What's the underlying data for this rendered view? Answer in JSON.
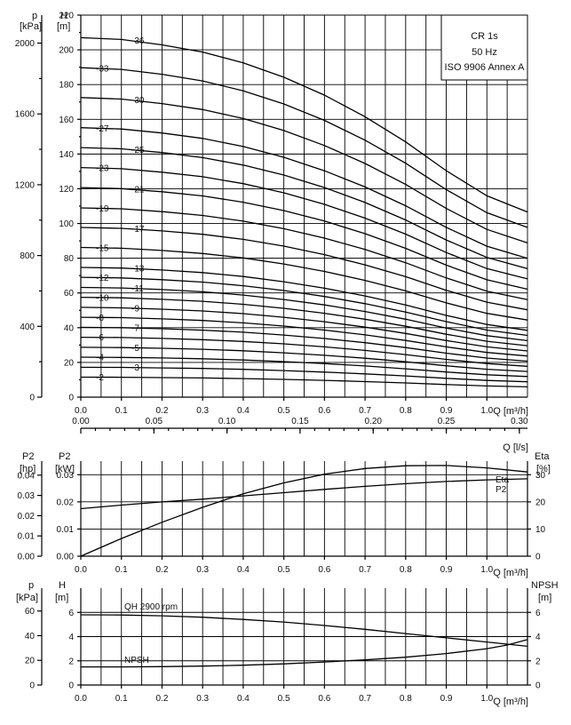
{
  "chart_data": [
    {
      "type": "line",
      "name_box": {
        "title": "CR 1s",
        "line2": "50 Hz",
        "line3": "ISO 9906 Annex A"
      },
      "x_axis": {
        "label": "Q [m³/h]",
        "min": 0,
        "max": 1.1,
        "ticks": [
          "0.0",
          "0.1",
          "0.2",
          "0.3",
          "0.4",
          "0.5",
          "0.6",
          "0.7",
          "0.8",
          "0.9",
          "1.0"
        ],
        "tick_values": [
          0,
          0.1,
          0.2,
          0.3,
          0.4,
          0.5,
          0.6,
          0.7,
          0.8,
          0.9,
          1.0
        ]
      },
      "y_axis_left": {
        "label_line1": "H",
        "label_line2": "[m]",
        "min": 0,
        "max": 220,
        "ticks": [
          "0",
          "20",
          "40",
          "60",
          "80",
          "100",
          "120",
          "140",
          "160",
          "180",
          "200",
          "220"
        ],
        "tick_values": [
          0,
          20,
          40,
          60,
          80,
          100,
          120,
          140,
          160,
          180,
          200,
          220
        ]
      },
      "y_axis_p": {
        "label_line1": "p",
        "label_line2": "[kPa]",
        "ticks": [
          "0",
          "400",
          "800",
          "1200",
          "1600",
          "2000"
        ],
        "tick_values_kpa": [
          0,
          400,
          800,
          1200,
          1600,
          2000
        ]
      },
      "curve_x": [
        0,
        0.1,
        0.2,
        0.3,
        0.4,
        0.5,
        0.6,
        0.7,
        0.8,
        0.9,
        1.0,
        1.1
      ],
      "shape": [
        1.0,
        0.995,
        0.98,
        0.96,
        0.93,
        0.89,
        0.84,
        0.78,
        0.71,
        0.63,
        0.56,
        0.515
      ],
      "series": [
        {
          "name": "-2",
          "H0": 11.5
        },
        {
          "name": "-3",
          "H0": 17.2
        },
        {
          "name": "-4",
          "H0": 23
        },
        {
          "name": "-5",
          "H0": 28.7
        },
        {
          "name": "-6",
          "H0": 34.5
        },
        {
          "name": "-7",
          "H0": 40.2
        },
        {
          "name": "-8",
          "H0": 46
        },
        {
          "name": "-9",
          "H0": 51.7
        },
        {
          "name": "-10",
          "H0": 57.5
        },
        {
          "name": "-11",
          "H0": 63.2
        },
        {
          "name": "-12",
          "H0": 69
        },
        {
          "name": "-13",
          "H0": 74.7
        },
        {
          "name": "-15",
          "H0": 86.2
        },
        {
          "name": "-17",
          "H0": 97.7
        },
        {
          "name": "-19",
          "H0": 109
        },
        {
          "name": "-21",
          "H0": 120.7
        },
        {
          "name": "-23",
          "H0": 132.2
        },
        {
          "name": "-25",
          "H0": 143.7
        },
        {
          "name": "-27",
          "H0": 155.2
        },
        {
          "name": "-30",
          "H0": 172.5
        },
        {
          "name": "-33",
          "H0": 189.7
        },
        {
          "name": "-36",
          "H0": 207
        }
      ]
    },
    {
      "type": "line",
      "top_axis": {
        "label": "Q [l/s]",
        "ticks": [
          "0.00",
          "0.05",
          "0.10",
          "0.15",
          "0.20",
          "0.25",
          "0.30"
        ],
        "tick_values": [
          0,
          0.05,
          0.1,
          0.15,
          0.2,
          0.25,
          0.3
        ]
      },
      "x_axis": {
        "label": "Q [m³/h]",
        "min": 0,
        "max": 1.1,
        "ticks": [
          "0.0",
          "0.1",
          "0.2",
          "0.3",
          "0.4",
          "0.5",
          "0.6",
          "0.7",
          "0.8",
          "0.9",
          "1.0"
        ],
        "tick_values": [
          0,
          0.1,
          0.2,
          0.3,
          0.4,
          0.5,
          0.6,
          0.7,
          0.8,
          0.9,
          1.0
        ]
      },
      "y_axis_kw": {
        "label_line1": "P2",
        "label_line2": "[kW]",
        "min": 0,
        "max": 0.035,
        "ticks": [
          "0.00",
          "0.01",
          "0.02",
          "0.03"
        ],
        "tick_values": [
          0,
          0.01,
          0.02,
          0.03
        ]
      },
      "y_axis_hp": {
        "label_line1": "P2",
        "label_line2": "[hp]",
        "ticks": [
          "0.00",
          "0.01",
          "0.02",
          "0.03",
          "0.04"
        ],
        "tick_values": [
          0,
          0.01,
          0.02,
          0.03,
          0.04
        ]
      },
      "y_axis_eta": {
        "label_line1": "Eta",
        "label_line2": "[%]",
        "min": 0,
        "max": 35,
        "ticks": [
          "0",
          "10",
          "20",
          "30"
        ],
        "tick_values": [
          0,
          10,
          20,
          30
        ]
      },
      "series": [
        {
          "name": "Eta",
          "axis": "eta",
          "x": [
            0,
            0.1,
            0.2,
            0.3,
            0.4,
            0.5,
            0.6,
            0.7,
            0.8,
            0.9,
            1.0,
            1.1
          ],
          "y": [
            0,
            6.5,
            12.5,
            18,
            23,
            27,
            30.2,
            32.3,
            33.3,
            33.4,
            32.5,
            31
          ]
        },
        {
          "name": "P2",
          "axis": "kw",
          "x": [
            0,
            0.1,
            0.2,
            0.3,
            0.4,
            0.5,
            0.6,
            0.7,
            0.8,
            0.9,
            1.0,
            1.1
          ],
          "y": [
            0.0175,
            0.0188,
            0.02,
            0.021,
            0.0222,
            0.0234,
            0.0246,
            0.0257,
            0.0267,
            0.0275,
            0.0281,
            0.0285
          ]
        }
      ]
    },
    {
      "type": "line",
      "x_axis": {
        "label": "Q [m³/h]",
        "min": 0,
        "max": 1.1,
        "ticks": [
          "0.0",
          "0.1",
          "0.2",
          "0.3",
          "0.4",
          "0.5",
          "0.6",
          "0.7",
          "0.8",
          "0.9",
          "1.0"
        ],
        "tick_values": [
          0,
          0.1,
          0.2,
          0.3,
          0.4,
          0.5,
          0.6,
          0.7,
          0.8,
          0.9,
          1.0
        ]
      },
      "y_axis_h": {
        "label_line1": "H",
        "label_line2": "[m]",
        "min": 0,
        "max": 8,
        "ticks": [
          "0",
          "2",
          "4",
          "6"
        ],
        "tick_values": [
          0,
          2,
          4,
          6
        ]
      },
      "y_axis_p": {
        "label_line1": "p",
        "label_line2": "[kPa]",
        "ticks": [
          "0",
          "20",
          "40",
          "60"
        ],
        "tick_values_kpa": [
          0,
          20,
          40,
          60
        ]
      },
      "y_axis_npsh": {
        "label_line1": "NPSH",
        "label_line2": "[m]",
        "ticks": [
          "0",
          "2",
          "4",
          "6"
        ],
        "tick_values": [
          0,
          2,
          4,
          6
        ]
      },
      "series": [
        {
          "name": "QH 2900 rpm",
          "x": [
            0,
            0.1,
            0.2,
            0.3,
            0.4,
            0.5,
            0.6,
            0.7,
            0.8,
            0.9,
            1.0,
            1.1
          ],
          "y": [
            5.8,
            5.78,
            5.72,
            5.6,
            5.42,
            5.2,
            4.92,
            4.6,
            4.25,
            3.9,
            3.55,
            3.2
          ]
        },
        {
          "name": "NPSH",
          "x": [
            0,
            0.1,
            0.2,
            0.3,
            0.4,
            0.5,
            0.6,
            0.7,
            0.8,
            0.9,
            1.0,
            1.05,
            1.1
          ],
          "y": [
            1.5,
            1.5,
            1.52,
            1.56,
            1.64,
            1.75,
            1.9,
            2.08,
            2.3,
            2.6,
            3.0,
            3.3,
            3.75
          ]
        }
      ]
    }
  ]
}
